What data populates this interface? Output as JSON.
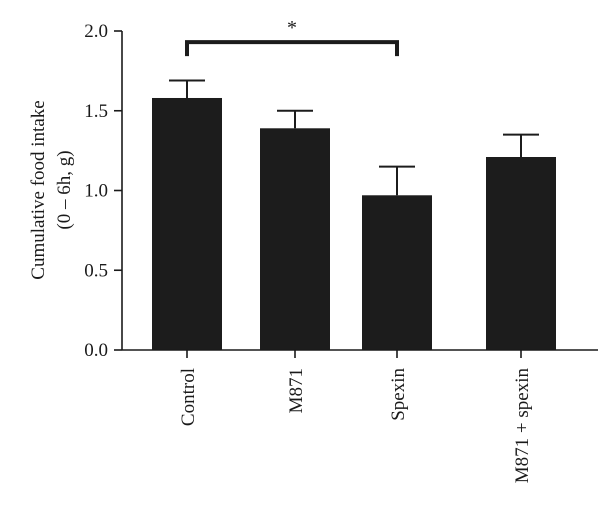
{
  "chart_data": {
    "type": "bar",
    "ylabel_line1": "Cumulative food intake",
    "ylabel_line2": "(0 – 6h, g)",
    "ylim": [
      0,
      2.0
    ],
    "yticks": [
      "0.0",
      "0.5",
      "1.0",
      "1.5",
      "2.0"
    ],
    "ytick_values": [
      0,
      0.5,
      1.0,
      1.5,
      2.0
    ],
    "categories": [
      "Control",
      "M871",
      "Spexin",
      "M871 + spexin"
    ],
    "values": [
      1.58,
      1.39,
      0.97,
      1.21
    ],
    "errors": [
      0.11,
      0.11,
      0.18,
      0.14
    ],
    "grid": false,
    "significance": {
      "from": "Control",
      "to": "Spexin",
      "label": "*",
      "y": 1.93
    },
    "bar_color": "#1c1c1c"
  }
}
